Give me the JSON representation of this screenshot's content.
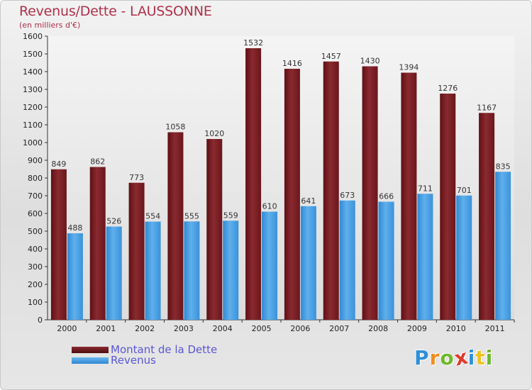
{
  "chart_data": {
    "type": "bar",
    "title": "Revenus/Dette - LAUSSONNE",
    "subtitle": "(en milliers d'€)",
    "categories": [
      "2000",
      "2001",
      "2002",
      "2003",
      "2004",
      "2005",
      "2006",
      "2007",
      "2008",
      "2009",
      "2010",
      "2011"
    ],
    "series": [
      {
        "name": "Montant de la Dette",
        "color": "#7a1e24",
        "values": [
          849,
          862,
          773,
          1058,
          1020,
          1532,
          1416,
          1457,
          1430,
          1394,
          1276,
          1167
        ]
      },
      {
        "name": "Revenus",
        "color": "#3d97de",
        "values": [
          488,
          526,
          554,
          555,
          559,
          610,
          641,
          673,
          666,
          711,
          701,
          835
        ]
      }
    ],
    "yticks": [
      0,
      100,
      200,
      300,
      400,
      500,
      600,
      700,
      800,
      900,
      1000,
      1100,
      1200,
      1300,
      1400,
      1500,
      1600
    ],
    "ylim": [
      0,
      1600
    ],
    "xlabel": "",
    "ylabel": "",
    "grid": false,
    "legend": "bottom-left"
  },
  "logo": {
    "letters": [
      {
        "ch": "P",
        "color": "#2f8fd8"
      },
      {
        "ch": "r",
        "color": "#f08c1e"
      },
      {
        "ch": "o",
        "color": "#6fb82b"
      },
      {
        "ch": "x",
        "color": "#e03a2c"
      },
      {
        "ch": "i",
        "color": "#2f8fd8"
      },
      {
        "ch": "t",
        "color": "#f0c21e"
      },
      {
        "ch": "i",
        "color": "#6fb82b"
      }
    ]
  }
}
